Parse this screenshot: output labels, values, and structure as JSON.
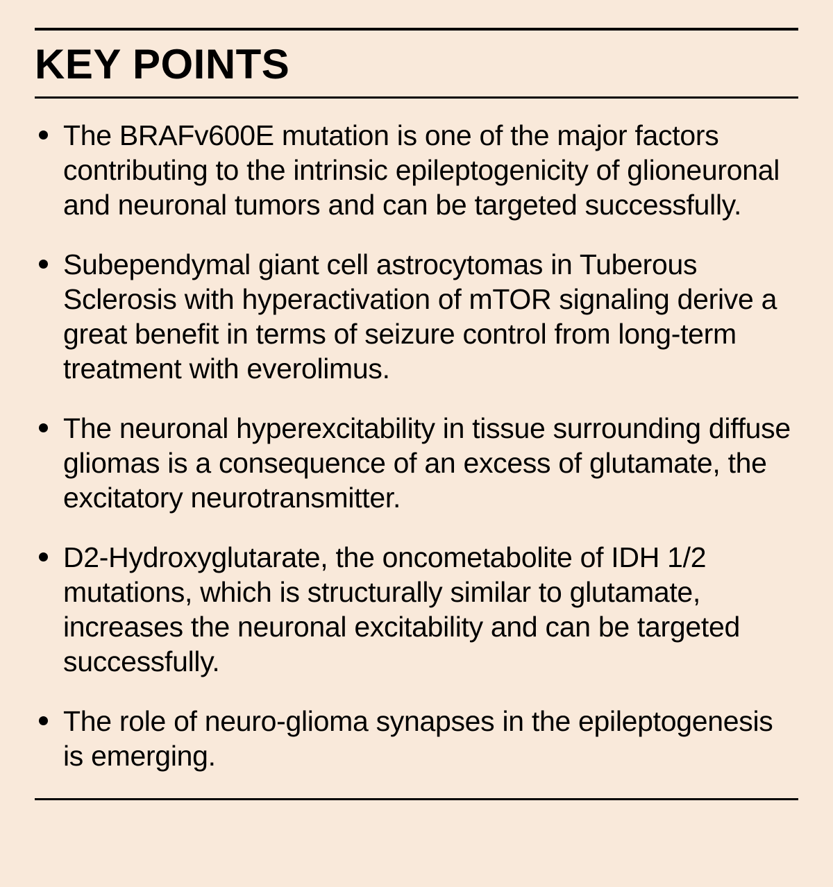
{
  "title": "KEY POINTS",
  "background_color": "#f9e9da",
  "text_color": "#000000",
  "title_fontsize": 60,
  "title_fontweight": 900,
  "body_fontsize": 41,
  "body_fontweight": 400,
  "rule_color": "#000000",
  "rule_top_width": 4,
  "rule_bottom_width": 3,
  "bullet_size": 13,
  "bullet_color": "#000000",
  "points": [
    "The BRAFv600E mutation is one of the major factors contributing to the intrinsic epileptogenicity of glioneuronal and neuronal tumors and can be targeted successfully.",
    "Subependymal giant cell astrocytomas in Tuberous Sclerosis with hyperactivation of mTOR signaling derive a great benefit in terms of seizure control from long-term treatment with everolimus.",
    "The neuronal hyperexcitability in tissue surrounding diffuse gliomas is a consequence of an excess of glutamate, the excitatory neurotransmitter.",
    "D2-Hydroxyglutarate, the oncometabolite of IDH 1/2 mutations, which is structurally similar to glutamate, increases the neuronal excitability and can be targeted successfully.",
    "The role of neuro-glioma synapses in the epileptogenesis is emerging."
  ]
}
